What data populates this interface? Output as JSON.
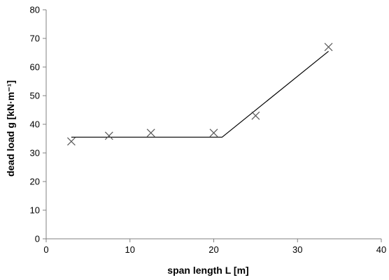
{
  "chart_data": {
    "type": "scatter",
    "title": "",
    "xlabel": "span length L [m]",
    "ylabel": "dead load g [kN·m⁻¹]",
    "xlim": [
      0,
      40
    ],
    "ylim": [
      0,
      80
    ],
    "x_ticks": [
      0,
      10,
      20,
      30,
      40
    ],
    "y_ticks": [
      0,
      10,
      20,
      30,
      40,
      50,
      60,
      70,
      80
    ],
    "grid": false,
    "legend": "none",
    "series": [
      {
        "marker": "x",
        "x": [
          3,
          7.5,
          12.5,
          20,
          25,
          33.7
        ],
        "y": [
          34,
          36,
          37,
          37,
          43,
          67
        ]
      }
    ],
    "fit_line": {
      "x": [
        3,
        21,
        33.7
      ],
      "y": [
        35.5,
        35.5,
        65.5
      ]
    },
    "colors": {
      "marker": "#595959",
      "line": "#000000",
      "axis": "#808080",
      "text": "#000000"
    }
  }
}
